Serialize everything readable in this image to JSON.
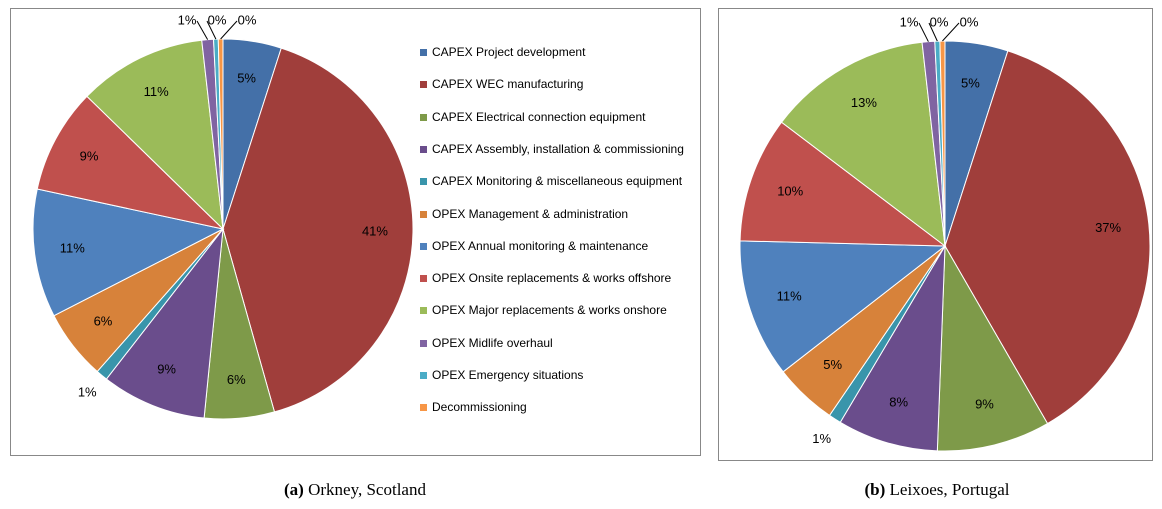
{
  "chart_data": [
    {
      "type": "pie",
      "caption_label": "(a)",
      "caption": "Orkney, Scotland",
      "categories": [
        "CAPEX Project development",
        "CAPEX WEC manufacturing",
        "CAPEX Electrical connection equipment",
        "CAPEX Assembly, installation & commissioning",
        "CAPEX Monitoring & miscellaneous equipment",
        "OPEX Management & administration",
        "OPEX Annual monitoring & maintenance",
        "OPEX Onsite replacements & works offshore",
        "OPEX Major replacements & works onshore",
        "OPEX Midlife overhaul",
        "OPEX Emergency situations",
        "Decommissioning"
      ],
      "values": [
        5,
        41,
        6,
        9,
        1,
        6,
        11,
        9,
        11,
        1,
        0.4,
        0.4
      ],
      "value_labels": [
        "5%",
        "41%",
        "6%",
        "9%",
        "1%",
        "6%",
        "11%",
        "9%",
        "11%",
        "1%",
        "0%",
        "0%"
      ],
      "colors": [
        "#4470a8",
        "#a03e3b",
        "#7e9a49",
        "#6a4d8c",
        "#3995ab",
        "#d7823a",
        "#4f81bd",
        "#c0504d",
        "#9bbb59",
        "#8064a2",
        "#4bacc6",
        "#f79646"
      ],
      "legend": "right"
    },
    {
      "type": "pie",
      "caption_label": "(b)",
      "caption": "Leixoes, Portugal",
      "values": [
        5,
        37,
        9,
        8,
        1,
        5,
        11,
        10,
        13,
        1,
        0.4,
        0.4
      ],
      "value_labels": [
        "5%",
        "37%",
        "9%",
        "8%",
        "1%",
        "5%",
        "11%",
        "10%",
        "13%",
        "1%",
        "0%",
        "0%"
      ],
      "colors": [
        "#4470a8",
        "#a03e3b",
        "#7e9a49",
        "#6a4d8c",
        "#3995ab",
        "#d7823a",
        "#4f81bd",
        "#c0504d",
        "#9bbb59",
        "#8064a2",
        "#4bacc6",
        "#f79646"
      ]
    }
  ]
}
